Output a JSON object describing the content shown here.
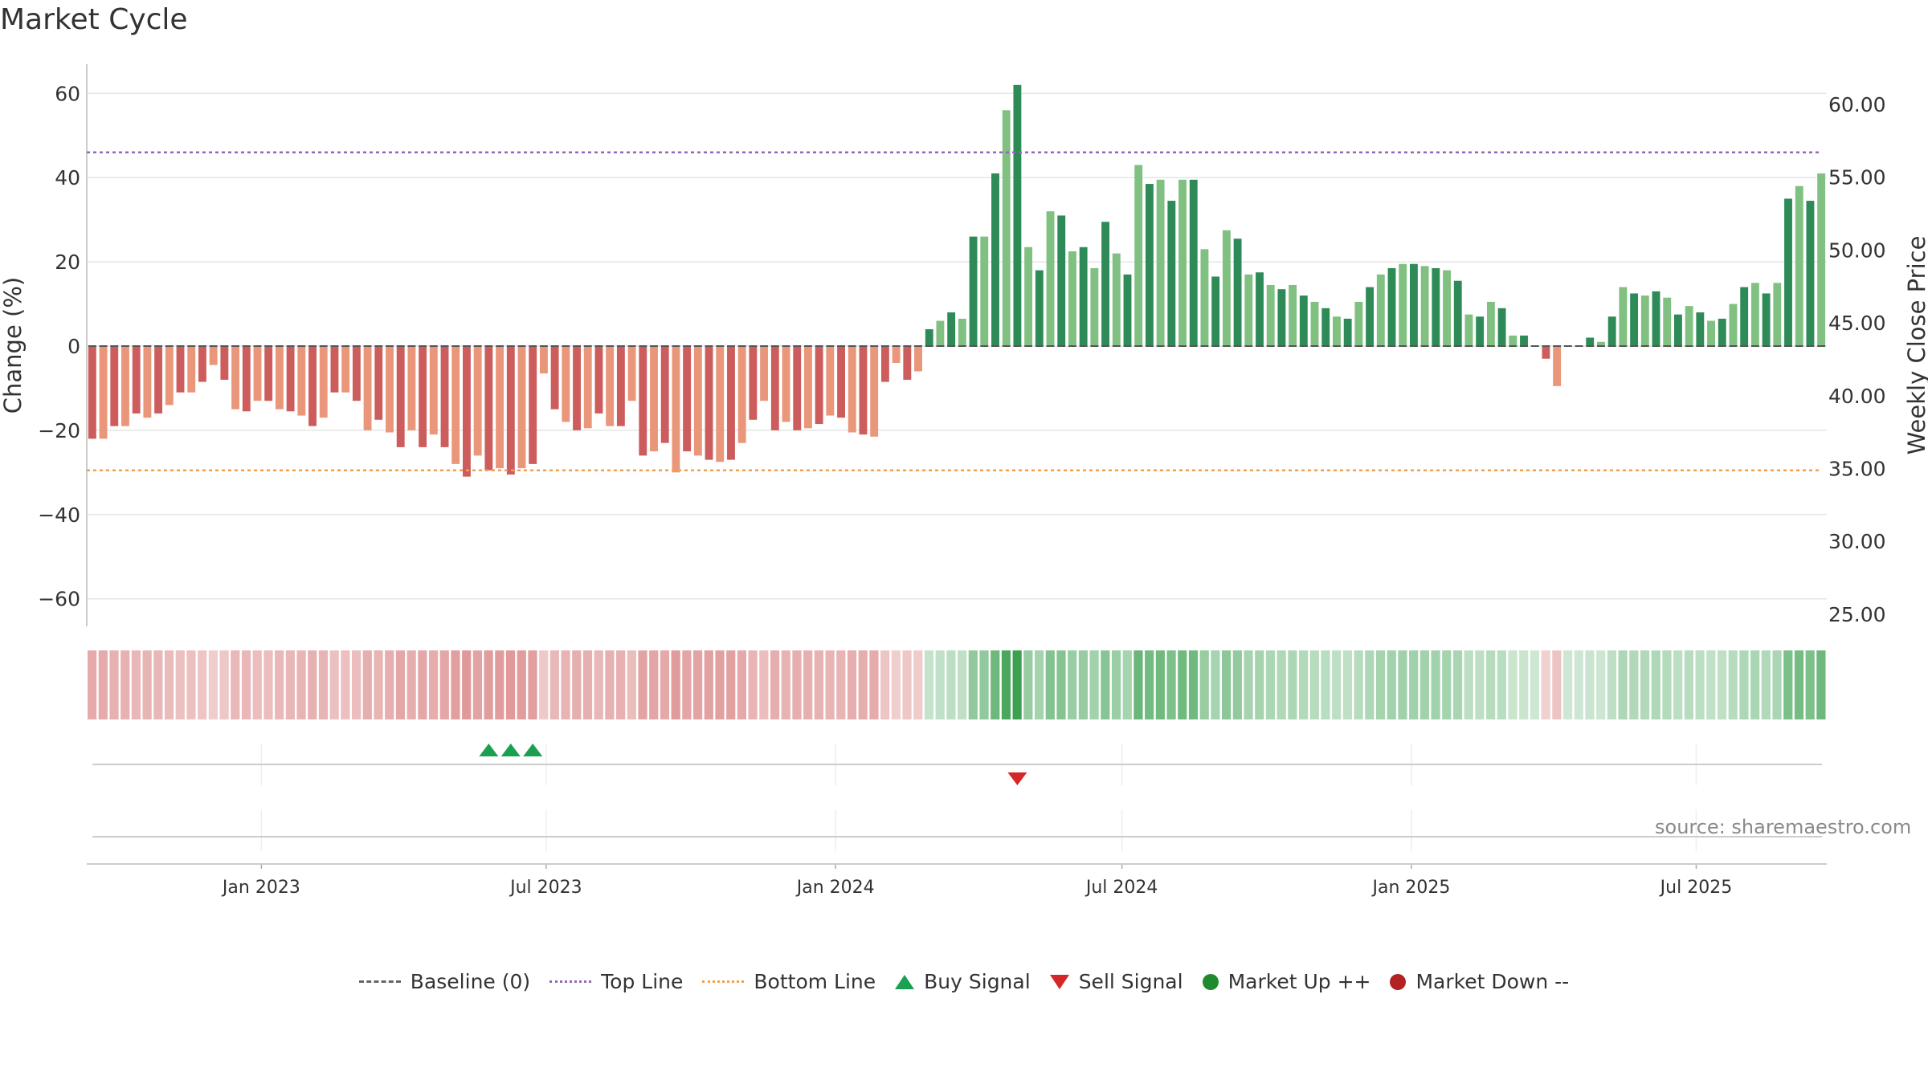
{
  "chart_data": {
    "type": "bar",
    "title": "Market Cycle",
    "ylabel": "Change (%)",
    "y2label": "Weekly Close Price",
    "ylim": [
      -67,
      67
    ],
    "y2lim": [
      23.9,
      62.6
    ],
    "yticks": [
      60,
      40,
      20,
      0,
      -20,
      -40,
      -60
    ],
    "y2ticks": [
      "60.00",
      "55.00",
      "50.00",
      "45.00",
      "40.00",
      "35.00",
      "30.00",
      "25.00"
    ],
    "x_start": "2022-09-12",
    "week_count": 158,
    "xticks": [
      {
        "date": "2023-01-01",
        "label": "Jan 2023"
      },
      {
        "date": "2023-07-01",
        "label": "Jul 2023"
      },
      {
        "date": "2024-01-01",
        "label": "Jan 2024"
      },
      {
        "date": "2024-07-01",
        "label": "Jul 2024"
      },
      {
        "date": "2025-01-01",
        "label": "Jan 2025"
      },
      {
        "date": "2025-07-01",
        "label": "Jul 2025"
      }
    ],
    "top_line": 46,
    "bottom_line": -29.5,
    "values": [
      -22,
      -22,
      -19,
      -19,
      -16,
      -17,
      -16,
      -14,
      -11,
      -11,
      -8.5,
      -4.5,
      -8,
      -15,
      -15.5,
      -13,
      -13,
      -15,
      -15.5,
      -16.5,
      -19,
      -17,
      -11,
      -11,
      -13,
      -20,
      -17.5,
      -20.5,
      -24,
      -20,
      -24,
      -21,
      -24,
      -28,
      -31,
      -26,
      -29.5,
      -29,
      -30.5,
      -29,
      -28,
      -6.5,
      -15,
      -18,
      -20,
      -19.5,
      -16,
      -19,
      -19,
      -13,
      -26,
      -25,
      -23,
      -30,
      -25,
      -26,
      -27,
      -27.5,
      -27,
      -23,
      -17.5,
      -13,
      -20,
      -18,
      -20,
      -19.5,
      -18.5,
      -16.5,
      -17,
      -20.5,
      -21,
      -21.5,
      -8.5,
      -4,
      -8,
      -6,
      4,
      6,
      8,
      6.5,
      26,
      26,
      41,
      56,
      62,
      23.5,
      18,
      32,
      31,
      22.5,
      23.5,
      18.5,
      29.5,
      22,
      17,
      43,
      38.5,
      39.5,
      34.5,
      39.5,
      39.5,
      23,
      16.5,
      27.5,
      25.5,
      17,
      17.5,
      14.5,
      13.5,
      14.5,
      12,
      10.5,
      9,
      7,
      6.5,
      10.5,
      14,
      17,
      18.5,
      19.5,
      19.5,
      19,
      18.5,
      18,
      15.5,
      7.5,
      7,
      10.5,
      9,
      2.5,
      2.5,
      0,
      -3,
      -9.5,
      0,
      0,
      2,
      1,
      7,
      14,
      12.5,
      12,
      13,
      11.5,
      7.5,
      9.5,
      8,
      6,
      6.5,
      10,
      14,
      15,
      12.5,
      15,
      35,
      38,
      34.5,
      41
    ],
    "signals": [
      {
        "type": "buy",
        "date": "2023-05-22"
      },
      {
        "type": "buy",
        "date": "2023-06-05"
      },
      {
        "type": "buy",
        "date": "2023-06-19"
      },
      {
        "type": "sell",
        "date": "2024-04-22"
      }
    ],
    "legend": [
      "Baseline (0)",
      "Top Line",
      "Bottom Line",
      "Buy Signal",
      "Sell Signal",
      "Market Up ++",
      "Market Down --"
    ],
    "source": "source: sharemaestro.com",
    "colors": {
      "strong_down": "#cd5c5c",
      "weak_down": "#e9967a",
      "strong_up": "#2e8b57",
      "weak_up": "#80c080",
      "top_line": "#9467bd",
      "bottom_line": "#f0a050",
      "buy": "#1aa050",
      "sell": "#d62728",
      "market_up": "#1f8a2e",
      "market_down": "#b22222"
    }
  }
}
